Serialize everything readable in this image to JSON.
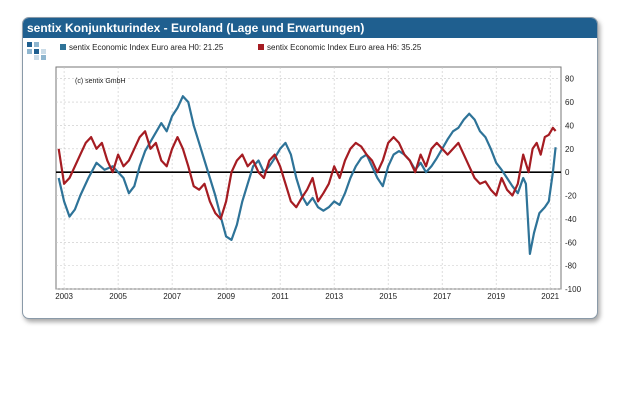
{
  "window": {
    "title": "sentix Konjunkturindex - Euroland (Lage und Erwartungen)"
  },
  "colors": {
    "title_bg": "#1f5f8f",
    "series_h0": "#2e7398",
    "series_h6": "#a51c22",
    "zero_line": "#000000",
    "grid": "#c8c8c8"
  },
  "icons": [
    "sentix-logo-icon"
  ],
  "chart_data": {
    "type": "line",
    "annotation": "(c) sentix GmbH",
    "xlabel": "",
    "ylabel": "",
    "xlim": [
      2002.7,
      2021.4
    ],
    "ylim": [
      -100,
      90
    ],
    "x_ticks": [
      2003,
      2005,
      2007,
      2009,
      2011,
      2013,
      2015,
      2017,
      2019,
      2021
    ],
    "y_ticks": [
      -100,
      -80,
      -60,
      -40,
      -20,
      0,
      20,
      40,
      60,
      80
    ],
    "y_tick_side": "right",
    "zero_line": true,
    "grid": true,
    "legend_position": "top",
    "series": [
      {
        "name": "sentix Economic Index Euro area H0: 21.25",
        "color": "#2e7398",
        "points": [
          [
            2002.8,
            -5
          ],
          [
            2003.0,
            -25
          ],
          [
            2003.2,
            -38
          ],
          [
            2003.4,
            -32
          ],
          [
            2003.6,
            -20
          ],
          [
            2003.9,
            -5
          ],
          [
            2004.2,
            8
          ],
          [
            2004.5,
            2
          ],
          [
            2004.8,
            5
          ],
          [
            2005.0,
            0
          ],
          [
            2005.2,
            -5
          ],
          [
            2005.4,
            -18
          ],
          [
            2005.6,
            -12
          ],
          [
            2005.8,
            5
          ],
          [
            2006.0,
            18
          ],
          [
            2006.3,
            30
          ],
          [
            2006.6,
            42
          ],
          [
            2006.8,
            35
          ],
          [
            2007.0,
            48
          ],
          [
            2007.2,
            55
          ],
          [
            2007.4,
            65
          ],
          [
            2007.6,
            60
          ],
          [
            2007.8,
            40
          ],
          [
            2008.0,
            25
          ],
          [
            2008.2,
            10
          ],
          [
            2008.4,
            -5
          ],
          [
            2008.6,
            -20
          ],
          [
            2008.8,
            -38
          ],
          [
            2009.0,
            -55
          ],
          [
            2009.2,
            -58
          ],
          [
            2009.4,
            -45
          ],
          [
            2009.6,
            -25
          ],
          [
            2009.8,
            -10
          ],
          [
            2010.0,
            5
          ],
          [
            2010.2,
            10
          ],
          [
            2010.4,
            0
          ],
          [
            2010.6,
            5
          ],
          [
            2010.8,
            12
          ],
          [
            2011.0,
            20
          ],
          [
            2011.2,
            25
          ],
          [
            2011.4,
            15
          ],
          [
            2011.6,
            -5
          ],
          [
            2011.8,
            -20
          ],
          [
            2012.0,
            -28
          ],
          [
            2012.2,
            -22
          ],
          [
            2012.4,
            -30
          ],
          [
            2012.6,
            -33
          ],
          [
            2012.8,
            -30
          ],
          [
            2013.0,
            -25
          ],
          [
            2013.2,
            -28
          ],
          [
            2013.4,
            -18
          ],
          [
            2013.6,
            -5
          ],
          [
            2013.8,
            5
          ],
          [
            2014.0,
            12
          ],
          [
            2014.2,
            15
          ],
          [
            2014.4,
            5
          ],
          [
            2014.6,
            -5
          ],
          [
            2014.8,
            -12
          ],
          [
            2015.0,
            5
          ],
          [
            2015.2,
            15
          ],
          [
            2015.4,
            18
          ],
          [
            2015.6,
            15
          ],
          [
            2015.8,
            10
          ],
          [
            2016.0,
            2
          ],
          [
            2016.2,
            8
          ],
          [
            2016.4,
            0
          ],
          [
            2016.6,
            5
          ],
          [
            2016.8,
            12
          ],
          [
            2017.0,
            20
          ],
          [
            2017.2,
            28
          ],
          [
            2017.4,
            35
          ],
          [
            2017.6,
            38
          ],
          [
            2017.8,
            45
          ],
          [
            2018.0,
            50
          ],
          [
            2018.2,
            45
          ],
          [
            2018.4,
            35
          ],
          [
            2018.6,
            30
          ],
          [
            2018.8,
            20
          ],
          [
            2019.0,
            8
          ],
          [
            2019.2,
            2
          ],
          [
            2019.4,
            -5
          ],
          [
            2019.6,
            -12
          ],
          [
            2019.8,
            -18
          ],
          [
            2020.0,
            -5
          ],
          [
            2020.1,
            -10
          ],
          [
            2020.25,
            -70
          ],
          [
            2020.4,
            -52
          ],
          [
            2020.6,
            -35
          ],
          [
            2020.8,
            -30
          ],
          [
            2020.95,
            -25
          ],
          [
            2021.1,
            0
          ],
          [
            2021.2,
            21.25
          ]
        ]
      },
      {
        "name": "sentix Economic Index Euro area H6: 35.25",
        "color": "#a51c22",
        "points": [
          [
            2002.8,
            20
          ],
          [
            2003.0,
            -10
          ],
          [
            2003.2,
            -5
          ],
          [
            2003.4,
            5
          ],
          [
            2003.6,
            15
          ],
          [
            2003.8,
            25
          ],
          [
            2004.0,
            30
          ],
          [
            2004.2,
            20
          ],
          [
            2004.4,
            25
          ],
          [
            2004.6,
            10
          ],
          [
            2004.8,
            0
          ],
          [
            2005.0,
            15
          ],
          [
            2005.2,
            5
          ],
          [
            2005.4,
            10
          ],
          [
            2005.6,
            20
          ],
          [
            2005.8,
            30
          ],
          [
            2006.0,
            35
          ],
          [
            2006.2,
            20
          ],
          [
            2006.4,
            25
          ],
          [
            2006.6,
            10
          ],
          [
            2006.8,
            5
          ],
          [
            2007.0,
            20
          ],
          [
            2007.2,
            30
          ],
          [
            2007.4,
            20
          ],
          [
            2007.6,
            5
          ],
          [
            2007.8,
            -12
          ],
          [
            2008.0,
            -15
          ],
          [
            2008.2,
            -10
          ],
          [
            2008.4,
            -25
          ],
          [
            2008.6,
            -35
          ],
          [
            2008.8,
            -40
          ],
          [
            2009.0,
            -25
          ],
          [
            2009.2,
            0
          ],
          [
            2009.4,
            10
          ],
          [
            2009.6,
            15
          ],
          [
            2009.8,
            5
          ],
          [
            2010.0,
            10
          ],
          [
            2010.2,
            0
          ],
          [
            2010.4,
            -5
          ],
          [
            2010.6,
            10
          ],
          [
            2010.8,
            15
          ],
          [
            2011.0,
            5
          ],
          [
            2011.2,
            -10
          ],
          [
            2011.4,
            -25
          ],
          [
            2011.6,
            -30
          ],
          [
            2011.8,
            -22
          ],
          [
            2012.0,
            -15
          ],
          [
            2012.2,
            -5
          ],
          [
            2012.4,
            -25
          ],
          [
            2012.6,
            -18
          ],
          [
            2012.8,
            -10
          ],
          [
            2013.0,
            5
          ],
          [
            2013.2,
            -5
          ],
          [
            2013.4,
            10
          ],
          [
            2013.6,
            20
          ],
          [
            2013.8,
            25
          ],
          [
            2014.0,
            22
          ],
          [
            2014.2,
            15
          ],
          [
            2014.4,
            10
          ],
          [
            2014.6,
            0
          ],
          [
            2014.8,
            10
          ],
          [
            2015.0,
            25
          ],
          [
            2015.2,
            30
          ],
          [
            2015.4,
            25
          ],
          [
            2015.6,
            15
          ],
          [
            2015.8,
            10
          ],
          [
            2016.0,
            0
          ],
          [
            2016.2,
            15
          ],
          [
            2016.4,
            5
          ],
          [
            2016.6,
            20
          ],
          [
            2016.8,
            25
          ],
          [
            2017.0,
            20
          ],
          [
            2017.2,
            15
          ],
          [
            2017.4,
            20
          ],
          [
            2017.6,
            25
          ],
          [
            2017.8,
            15
          ],
          [
            2018.0,
            5
          ],
          [
            2018.2,
            -5
          ],
          [
            2018.4,
            -10
          ],
          [
            2018.6,
            -8
          ],
          [
            2018.8,
            -15
          ],
          [
            2019.0,
            -20
          ],
          [
            2019.2,
            -5
          ],
          [
            2019.4,
            -15
          ],
          [
            2019.6,
            -20
          ],
          [
            2019.8,
            -10
          ],
          [
            2020.0,
            15
          ],
          [
            2020.2,
            0
          ],
          [
            2020.35,
            20
          ],
          [
            2020.5,
            25
          ],
          [
            2020.65,
            15
          ],
          [
            2020.8,
            30
          ],
          [
            2020.95,
            32
          ],
          [
            2021.1,
            38
          ],
          [
            2021.2,
            35.25
          ]
        ]
      }
    ]
  }
}
